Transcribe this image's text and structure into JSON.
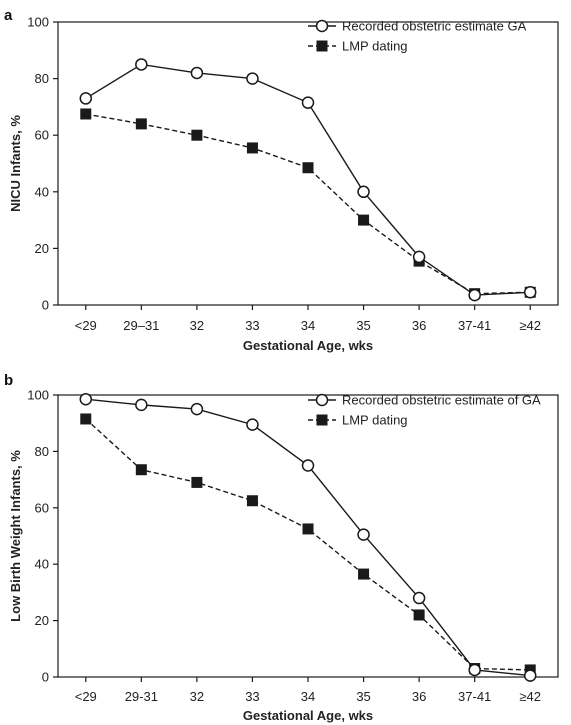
{
  "chart_data": [
    {
      "type": "line",
      "panel_label": "a",
      "categories": [
        "<29",
        "29–31",
        "32",
        "33",
        "34",
        "35",
        "36",
        "37-41",
        "≥42"
      ],
      "series": [
        {
          "name": "Recorded obstetric estimate GA",
          "marker": "open-circle",
          "line": "solid",
          "values": [
            73,
            85,
            82,
            80,
            71.5,
            40,
            17,
            3.5,
            4.5
          ]
        },
        {
          "name": "LMP dating",
          "marker": "filled-square",
          "line": "dashed",
          "values": [
            67.5,
            64,
            60,
            55.5,
            48.5,
            30,
            15.5,
            4,
            4.5
          ]
        }
      ],
      "xlabel": "Gestational Age, wks",
      "ylabel": "NICU Infants, %",
      "ylim": [
        0,
        100
      ],
      "yticks": [
        "0",
        "20",
        "40",
        "60",
        "80",
        "100"
      ],
      "grid": false,
      "legend_position": "top-right"
    },
    {
      "type": "line",
      "panel_label": "b",
      "categories": [
        "<29",
        "29-31",
        "32",
        "33",
        "34",
        "35",
        "36",
        "37-41",
        "≥42"
      ],
      "series": [
        {
          "name": "Recorded obstetric estimate of GA",
          "marker": "open-circle",
          "line": "solid",
          "values": [
            98.5,
            96.5,
            95,
            89.5,
            75,
            50.5,
            28,
            2.5,
            0.5
          ]
        },
        {
          "name": "LMP dating",
          "marker": "filled-square",
          "line": "dashed",
          "values": [
            91.5,
            73.5,
            69,
            62.5,
            52.5,
            36.5,
            22,
            3,
            2.5
          ]
        }
      ],
      "xlabel": "Gestational Age, wks",
      "ylabel": "Low Birth Weight Infants, %",
      "ylim": [
        0,
        100
      ],
      "yticks": [
        "0",
        "20",
        "40",
        "60",
        "80",
        "100"
      ],
      "grid": false,
      "legend_position": "top-right"
    }
  ],
  "colors": {
    "ink": "#1a1a1a",
    "marker_fill_open": "#ffffff",
    "marker_fill_solid": "#1a1a1a"
  }
}
